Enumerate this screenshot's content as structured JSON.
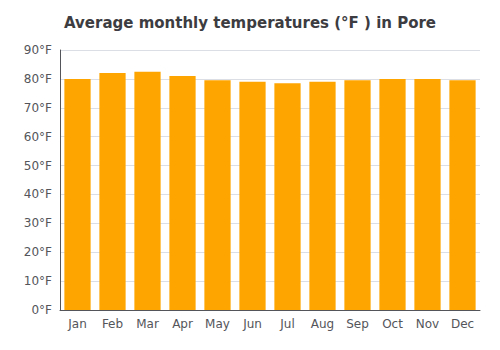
{
  "chart_data": {
    "type": "bar",
    "title": "Average monthly temperatures (°F ) in Pore",
    "categories": [
      "Jan",
      "Feb",
      "Mar",
      "Apr",
      "May",
      "Jun",
      "Jul",
      "Aug",
      "Sep",
      "Oct",
      "Nov",
      "Dec"
    ],
    "values": [
      80,
      82,
      82.5,
      81,
      79.5,
      79,
      78.5,
      79,
      79.5,
      80,
      80,
      79.5
    ],
    "color": "#FFA500",
    "ylim": [
      0,
      90
    ],
    "yticks": [
      {
        "value": 0,
        "label": "0°F"
      },
      {
        "value": 10,
        "label": "10°F"
      },
      {
        "value": 20,
        "label": "20°F"
      },
      {
        "value": 30,
        "label": "30°F"
      },
      {
        "value": 40,
        "label": "40°F"
      },
      {
        "value": 50,
        "label": "50°F"
      },
      {
        "value": 60,
        "label": "60°F"
      },
      {
        "value": 70,
        "label": "70°F"
      },
      {
        "value": 80,
        "label": "80°F"
      },
      {
        "value": 90,
        "label": "90°F"
      }
    ],
    "grid": true
  }
}
